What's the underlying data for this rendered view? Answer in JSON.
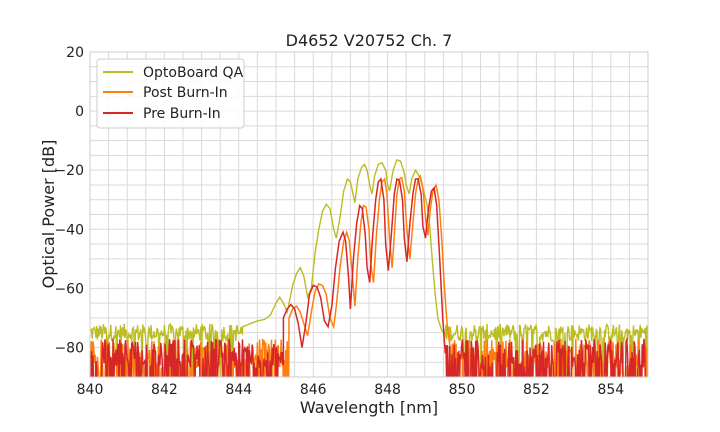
{
  "chart_data": {
    "type": "line",
    "title": "D4652 V20752 Ch. 7",
    "xlabel": "Wavelength [nm]",
    "ylabel": "Optical Power [dB]",
    "xlim": [
      840,
      855
    ],
    "ylim": [
      -90,
      20
    ],
    "xticks": [
      840,
      842,
      844,
      846,
      848,
      850,
      852,
      854
    ],
    "yticks": [
      20,
      0,
      -20,
      -40,
      -60,
      -80
    ],
    "xtick_labels": [
      "840",
      "842",
      "844",
      "846",
      "848",
      "850",
      "852",
      "854"
    ],
    "ytick_labels": [
      "20",
      "0",
      "−20",
      "−40",
      "−60",
      "−80"
    ],
    "grid": true,
    "legend_position": "top-left",
    "series": [
      {
        "name": "OptoBoard QA",
        "color": "#bcbd22",
        "noise_level": -75,
        "noise_band": [
          840.0,
          844.1
        ],
        "points": [
          [
            844.1,
            -73
          ],
          [
            844.3,
            -72
          ],
          [
            844.5,
            -71
          ],
          [
            844.7,
            -70.5
          ],
          [
            844.85,
            -69
          ],
          [
            845.0,
            -65
          ],
          [
            845.1,
            -63
          ],
          [
            845.2,
            -65
          ],
          [
            845.3,
            -68
          ],
          [
            845.45,
            -59
          ],
          [
            845.55,
            -55
          ],
          [
            845.65,
            -53
          ],
          [
            845.75,
            -56
          ],
          [
            845.85,
            -63
          ],
          [
            845.95,
            -60
          ],
          [
            846.05,
            -48
          ],
          [
            846.15,
            -40
          ],
          [
            846.25,
            -34
          ],
          [
            846.35,
            -31.5
          ],
          [
            846.45,
            -33
          ],
          [
            846.55,
            -40
          ],
          [
            846.62,
            -43
          ],
          [
            846.72,
            -36
          ],
          [
            846.82,
            -27
          ],
          [
            846.92,
            -23
          ],
          [
            847.0,
            -24
          ],
          [
            847.07,
            -28
          ],
          [
            847.12,
            -31
          ],
          [
            847.2,
            -23
          ],
          [
            847.3,
            -19
          ],
          [
            847.38,
            -18
          ],
          [
            847.45,
            -20
          ],
          [
            847.52,
            -25
          ],
          [
            847.58,
            -28
          ],
          [
            847.65,
            -22
          ],
          [
            847.75,
            -18
          ],
          [
            847.85,
            -17.5
          ],
          [
            847.95,
            -20
          ],
          [
            848.0,
            -25
          ],
          [
            848.05,
            -27
          ],
          [
            848.15,
            -20
          ],
          [
            848.25,
            -16.5
          ],
          [
            848.35,
            -17
          ],
          [
            848.45,
            -21
          ],
          [
            848.5,
            -25
          ],
          [
            848.58,
            -28
          ],
          [
            848.65,
            -23
          ],
          [
            848.75,
            -20
          ],
          [
            848.85,
            -22
          ],
          [
            848.95,
            -26
          ],
          [
            849.05,
            -31
          ],
          [
            849.12,
            -37
          ],
          [
            849.2,
            -50
          ],
          [
            849.28,
            -62
          ],
          [
            849.35,
            -70
          ],
          [
            849.45,
            -74
          ],
          [
            849.55,
            -76
          ]
        ],
        "noise_after": [
          849.55,
          855.0
        ]
      },
      {
        "name": "Post Burn-In",
        "color": "#ff7f0e",
        "noise_level": -82,
        "noise_band": [
          840.0,
          845.35
        ],
        "points": [
          [
            845.35,
            -70
          ],
          [
            845.45,
            -67
          ],
          [
            845.55,
            -66
          ],
          [
            845.65,
            -68
          ],
          [
            845.75,
            -72
          ],
          [
            845.85,
            -76
          ],
          [
            845.95,
            -68
          ],
          [
            846.05,
            -61
          ],
          [
            846.15,
            -58.5
          ],
          [
            846.25,
            -59
          ],
          [
            846.35,
            -62
          ],
          [
            846.45,
            -70
          ],
          [
            846.55,
            -73
          ],
          [
            846.62,
            -66
          ],
          [
            846.72,
            -53
          ],
          [
            846.82,
            -44
          ],
          [
            846.9,
            -41
          ],
          [
            846.97,
            -44
          ],
          [
            847.05,
            -55
          ],
          [
            847.12,
            -66
          ],
          [
            847.2,
            -50
          ],
          [
            847.28,
            -38
          ],
          [
            847.35,
            -32
          ],
          [
            847.42,
            -32.5
          ],
          [
            847.5,
            -40
          ],
          [
            847.55,
            -52
          ],
          [
            847.62,
            -58
          ],
          [
            847.7,
            -42
          ],
          [
            847.78,
            -30
          ],
          [
            847.85,
            -24
          ],
          [
            847.92,
            -23
          ],
          [
            847.98,
            -28
          ],
          [
            848.05,
            -43
          ],
          [
            848.12,
            -53
          ],
          [
            848.18,
            -42
          ],
          [
            848.25,
            -28
          ],
          [
            848.32,
            -23
          ],
          [
            848.38,
            -22.5
          ],
          [
            848.45,
            -27
          ],
          [
            848.52,
            -40
          ],
          [
            848.6,
            -50
          ],
          [
            848.68,
            -38
          ],
          [
            848.75,
            -28
          ],
          [
            848.82,
            -23
          ],
          [
            848.88,
            -22
          ],
          [
            848.95,
            -26
          ],
          [
            849.02,
            -36
          ],
          [
            849.08,
            -42
          ],
          [
            849.15,
            -33
          ],
          [
            849.22,
            -27
          ],
          [
            849.3,
            -25
          ],
          [
            849.38,
            -30
          ],
          [
            849.45,
            -42
          ],
          [
            849.52,
            -58
          ],
          [
            849.6,
            -72
          ],
          [
            849.68,
            -80
          ]
        ],
        "noise_after": [
          849.68,
          855.0
        ]
      },
      {
        "name": "Pre Burn-In",
        "color": "#d62728",
        "noise_level": -82,
        "noise_band": [
          840.0,
          845.2
        ],
        "points": [
          [
            845.2,
            -70
          ],
          [
            845.3,
            -67
          ],
          [
            845.4,
            -65.5
          ],
          [
            845.5,
            -67
          ],
          [
            845.6,
            -72
          ],
          [
            845.7,
            -80
          ],
          [
            845.8,
            -72
          ],
          [
            845.9,
            -62
          ],
          [
            846.0,
            -59
          ],
          [
            846.1,
            -59.5
          ],
          [
            846.2,
            -63
          ],
          [
            846.3,
            -71
          ],
          [
            846.4,
            -73
          ],
          [
            846.5,
            -66
          ],
          [
            846.6,
            -53
          ],
          [
            846.7,
            -44
          ],
          [
            846.8,
            -41
          ],
          [
            846.87,
            -44
          ],
          [
            846.95,
            -56
          ],
          [
            847.0,
            -67
          ],
          [
            847.08,
            -50
          ],
          [
            847.17,
            -38
          ],
          [
            847.25,
            -32
          ],
          [
            847.32,
            -33
          ],
          [
            847.4,
            -42
          ],
          [
            847.45,
            -53
          ],
          [
            847.52,
            -58
          ],
          [
            847.6,
            -42
          ],
          [
            847.68,
            -30
          ],
          [
            847.75,
            -24
          ],
          [
            847.82,
            -23
          ],
          [
            847.9,
            -30
          ],
          [
            847.95,
            -45
          ],
          [
            848.02,
            -54
          ],
          [
            848.1,
            -42
          ],
          [
            848.18,
            -28
          ],
          [
            848.25,
            -23
          ],
          [
            848.32,
            -23.5
          ],
          [
            848.4,
            -30
          ],
          [
            848.45,
            -43
          ],
          [
            848.52,
            -51
          ],
          [
            848.6,
            -38
          ],
          [
            848.68,
            -28
          ],
          [
            848.75,
            -23
          ],
          [
            848.82,
            -23
          ],
          [
            848.9,
            -28
          ],
          [
            848.95,
            -39
          ],
          [
            849.02,
            -43
          ],
          [
            849.1,
            -33
          ],
          [
            849.18,
            -27
          ],
          [
            849.25,
            -26
          ],
          [
            849.32,
            -32
          ],
          [
            849.4,
            -50
          ],
          [
            849.48,
            -70
          ],
          [
            849.55,
            -82
          ]
        ],
        "noise_after": [
          849.55,
          855.0
        ]
      }
    ]
  }
}
